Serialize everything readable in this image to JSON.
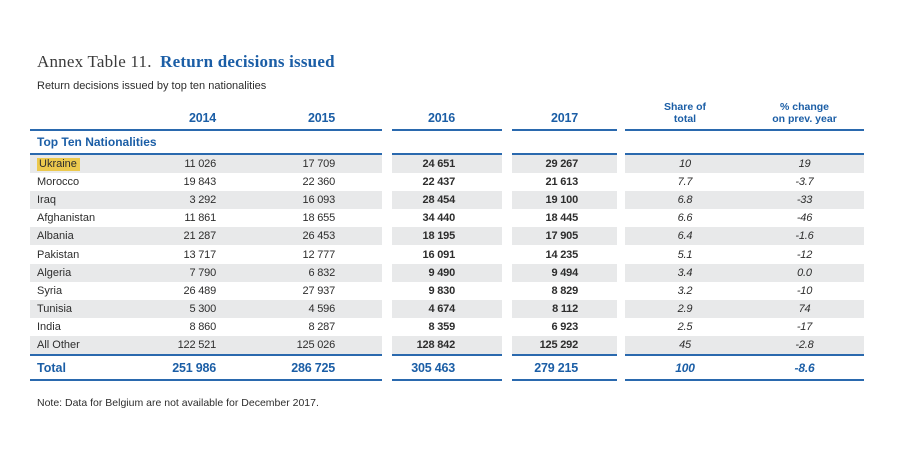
{
  "title": {
    "prefix": "Annex Table 11.",
    "main": "Return decisions issued"
  },
  "subtitle": "Return decisions issued by top ten nationalities",
  "note": "Note: Data for Belgium are not available for December 2017.",
  "colors": {
    "accent_blue": "#1b5ea6",
    "rule_blue": "#2a69ae",
    "stripe_gray": "#e8e9ea",
    "highlight_yellow": "#ecc94d"
  },
  "table": {
    "section_label": "Top Ten Nationalities",
    "header": {
      "y2014": "2014",
      "y2015": "2015",
      "y2016": "2016",
      "y2017": "2017",
      "share_line1": "Share of",
      "share_line2": "total",
      "pct_line1": "% change",
      "pct_line2": "on prev. year"
    },
    "rows": [
      {
        "name": "Ukraine",
        "highlight": true,
        "v2014": "11 026",
        "v2015": "17 709",
        "v2016": "24 651",
        "v2017": "29 267",
        "share": "10",
        "pct": "19"
      },
      {
        "name": "Morocco",
        "highlight": false,
        "v2014": "19 843",
        "v2015": "22 360",
        "v2016": "22 437",
        "v2017": "21 613",
        "share": "7.7",
        "pct": "-3.7"
      },
      {
        "name": "Iraq",
        "highlight": false,
        "v2014": "3 292",
        "v2015": "16 093",
        "v2016": "28 454",
        "v2017": "19 100",
        "share": "6.8",
        "pct": "-33"
      },
      {
        "name": "Afghanistan",
        "highlight": false,
        "v2014": "11 861",
        "v2015": "18 655",
        "v2016": "34 440",
        "v2017": "18 445",
        "share": "6.6",
        "pct": "-46"
      },
      {
        "name": "Albania",
        "highlight": false,
        "v2014": "21 287",
        "v2015": "26 453",
        "v2016": "18 195",
        "v2017": "17 905",
        "share": "6.4",
        "pct": "-1.6"
      },
      {
        "name": "Pakistan",
        "highlight": false,
        "v2014": "13 717",
        "v2015": "12 777",
        "v2016": "16 091",
        "v2017": "14 235",
        "share": "5.1",
        "pct": "-12"
      },
      {
        "name": "Algeria",
        "highlight": false,
        "v2014": "7 790",
        "v2015": "6 832",
        "v2016": "9 490",
        "v2017": "9 494",
        "share": "3.4",
        "pct": "0.0"
      },
      {
        "name": "Syria",
        "highlight": false,
        "v2014": "26 489",
        "v2015": "27 937",
        "v2016": "9 830",
        "v2017": "8 829",
        "share": "3.2",
        "pct": "-10"
      },
      {
        "name": "Tunisia",
        "highlight": false,
        "v2014": "5 300",
        "v2015": "4 596",
        "v2016": "4 674",
        "v2017": "8 112",
        "share": "2.9",
        "pct": "74"
      },
      {
        "name": "India",
        "highlight": false,
        "v2014": "8 860",
        "v2015": "8 287",
        "v2016": "8 359",
        "v2017": "6 923",
        "share": "2.5",
        "pct": "-17"
      },
      {
        "name": "All Other",
        "highlight": false,
        "v2014": "122 521",
        "v2015": "125 026",
        "v2016": "128 842",
        "v2017": "125 292",
        "share": "45",
        "pct": "-2.8"
      }
    ],
    "total": {
      "name": "Total",
      "v2014": "251 986",
      "v2015": "286 725",
      "v2016": "305 463",
      "v2017": "279 215",
      "share": "100",
      "pct": "-8.6"
    }
  }
}
